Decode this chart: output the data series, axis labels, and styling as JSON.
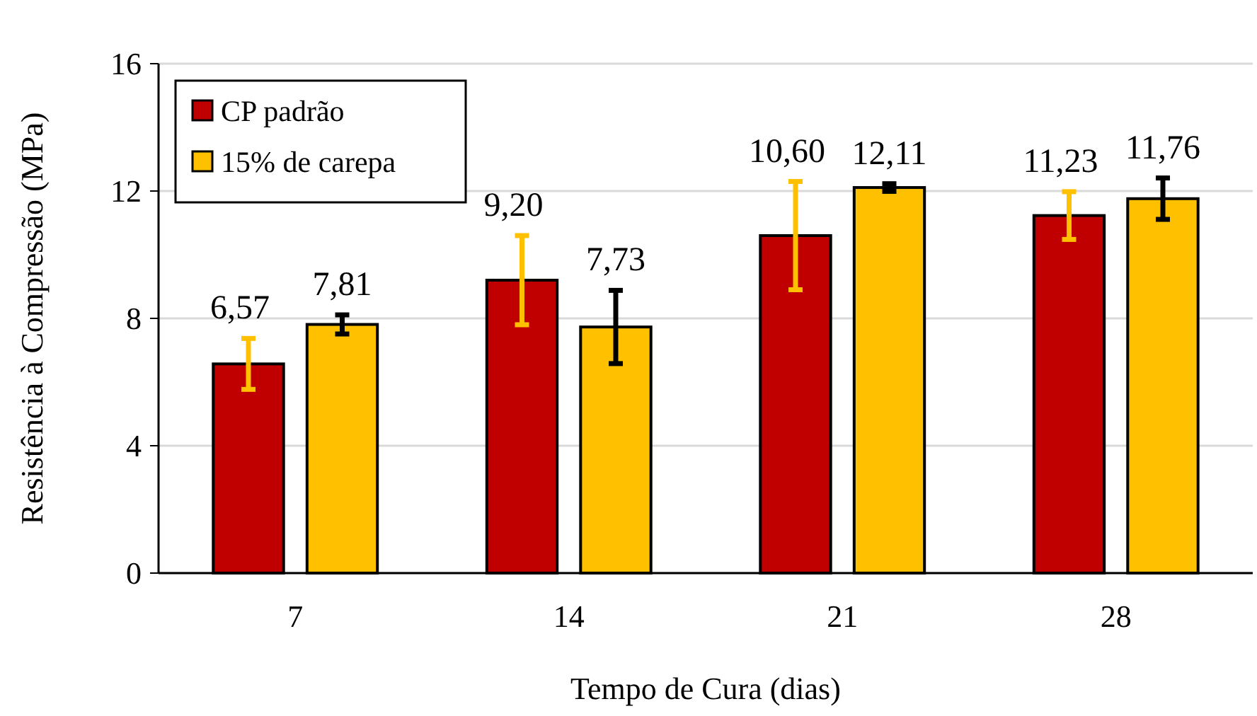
{
  "chart_data": {
    "type": "bar",
    "xlabel": "Tempo de Cura (dias)",
    "ylabel": "Resistência à Compressão (MPa)",
    "categories": [
      "7",
      "14",
      "21",
      "28"
    ],
    "series": [
      {
        "name": "CP padrão",
        "color": "#c00000",
        "values": [
          6.57,
          9.2,
          10.6,
          11.23
        ],
        "value_labels": [
          "6,57",
          "9,20",
          "10,60",
          "11,23"
        ],
        "errors": [
          0.8,
          1.4,
          1.7,
          0.75
        ]
      },
      {
        "name": "15% de carepa",
        "color": "#ffc000",
        "values": [
          7.81,
          7.73,
          12.11,
          11.76
        ],
        "value_labels": [
          "7,81",
          "7,73",
          "12,11",
          "11,76"
        ],
        "errors": [
          0.3,
          1.15,
          0.12,
          0.65
        ]
      }
    ],
    "ylim": [
      0,
      16
    ],
    "yticks": [
      0,
      4,
      8,
      12,
      16
    ],
    "grid": "y",
    "legend": "top left"
  }
}
